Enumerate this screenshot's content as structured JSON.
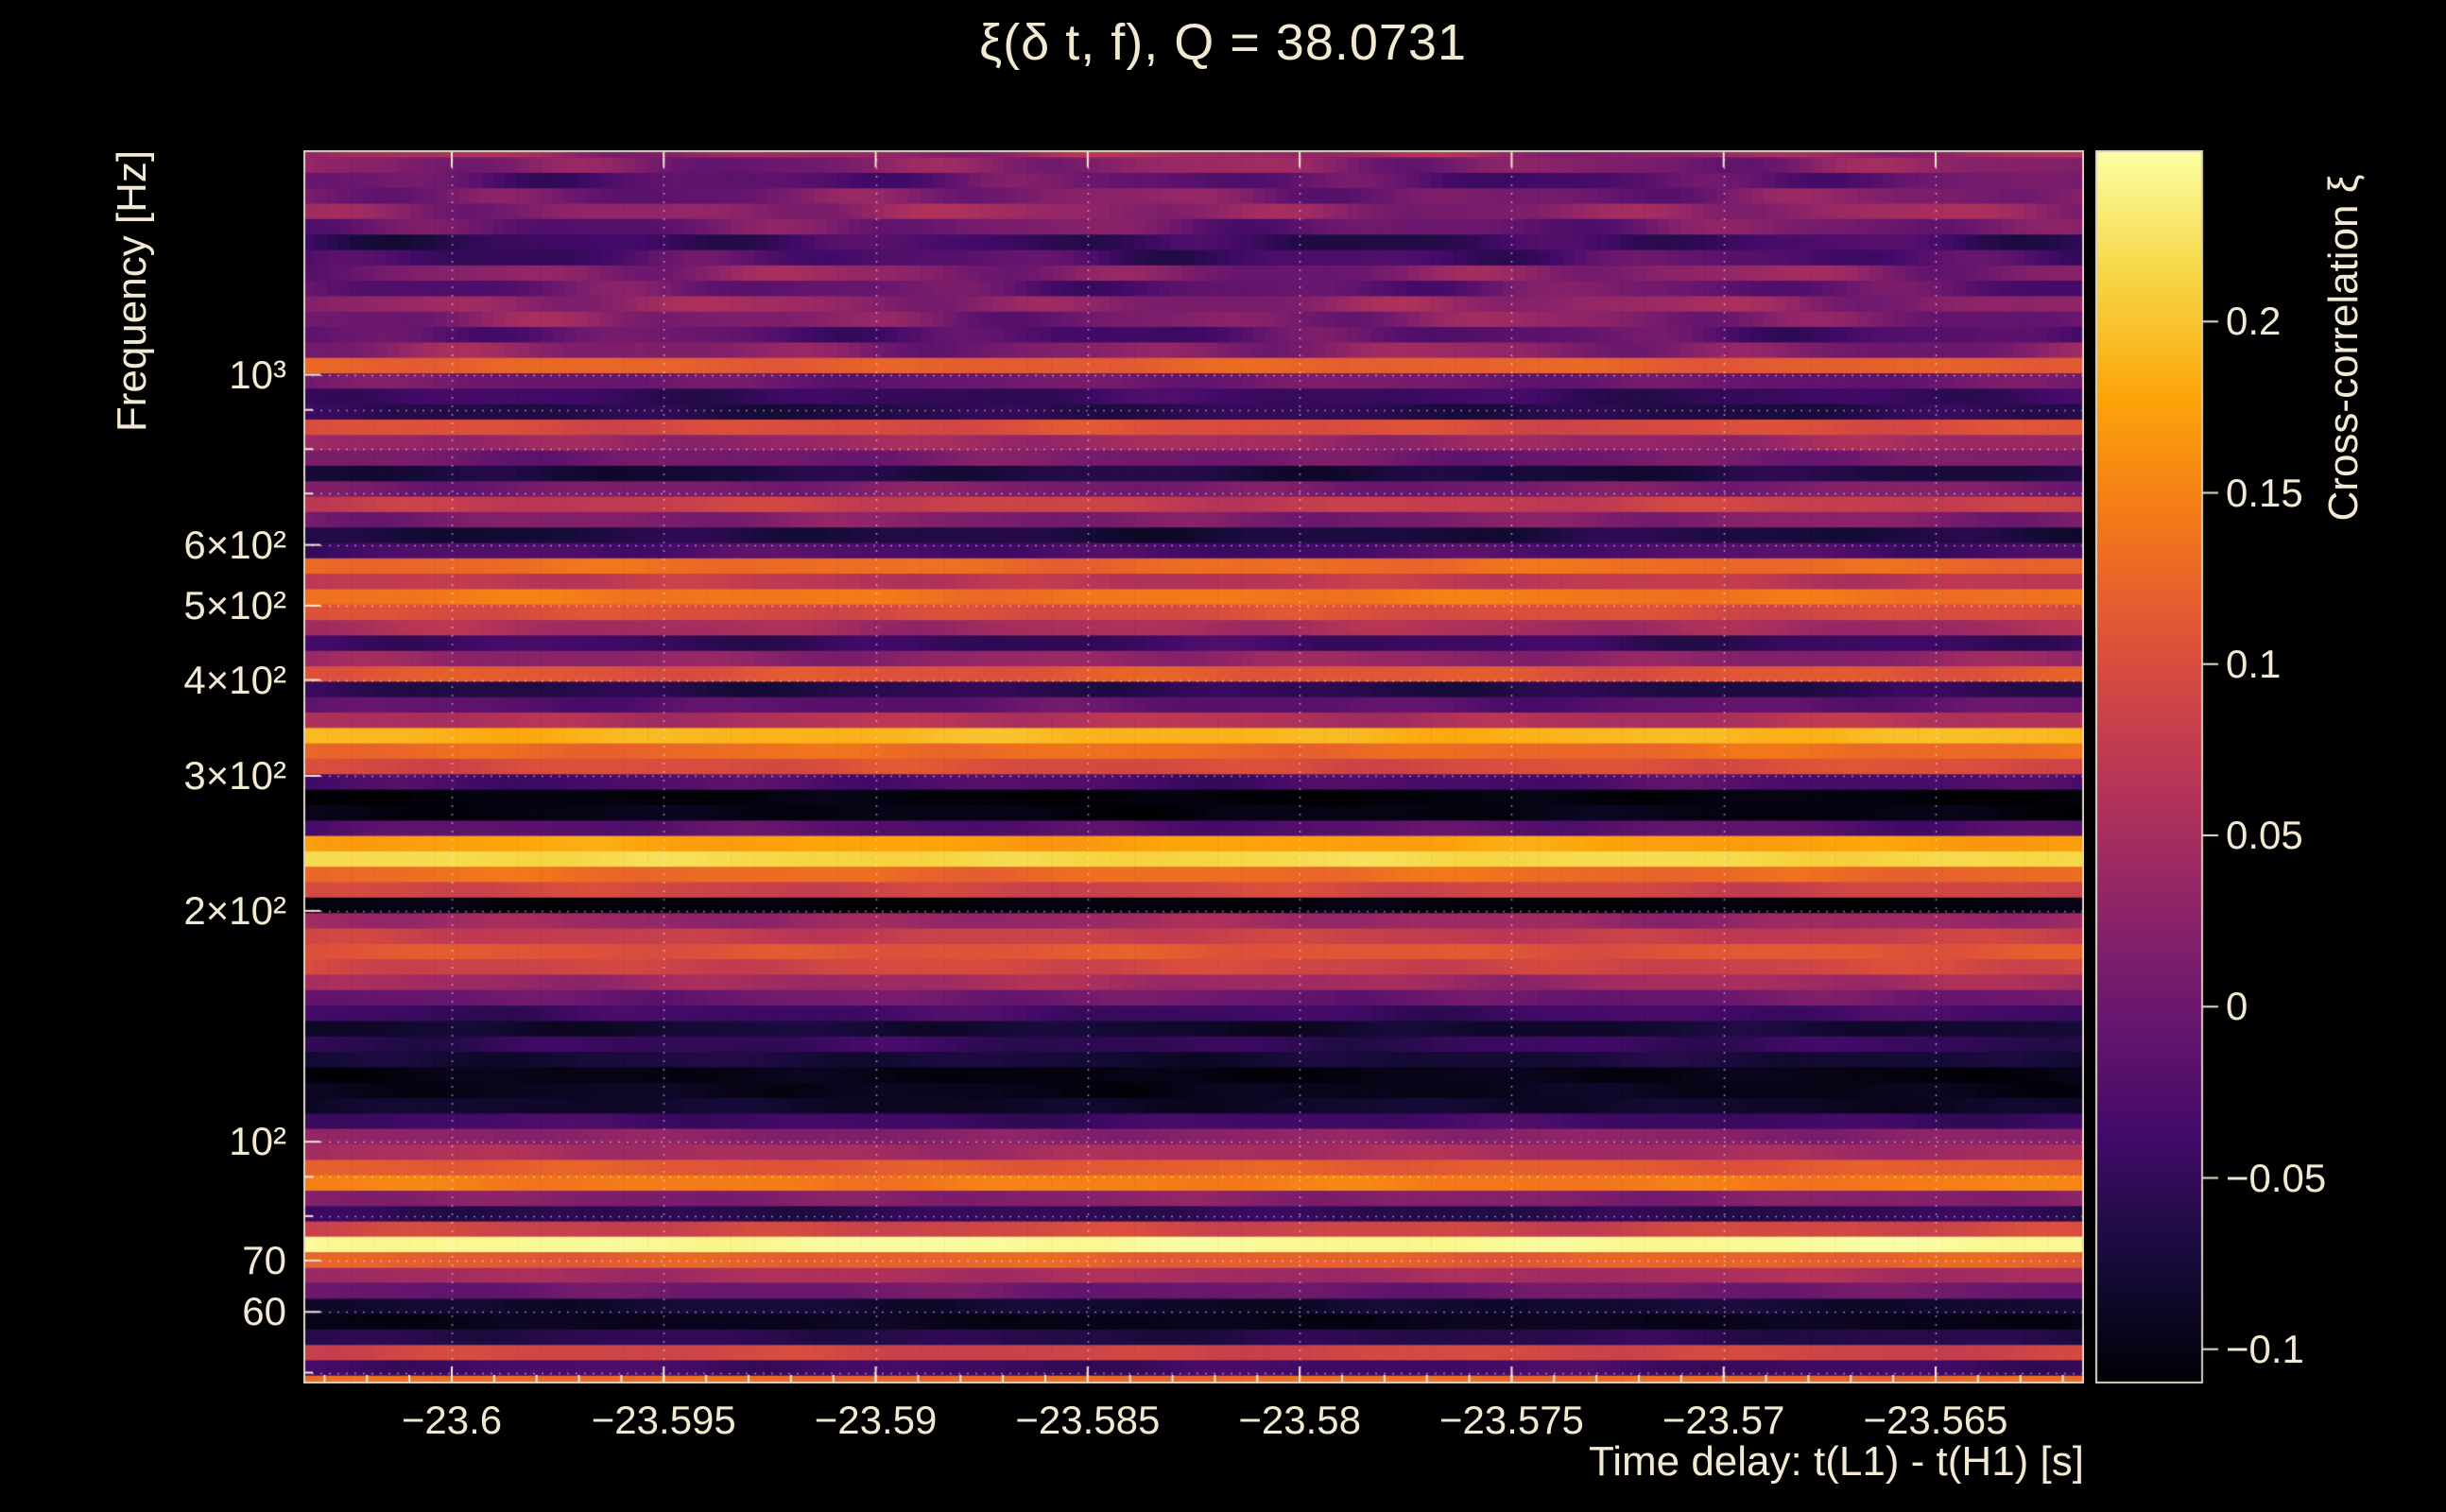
{
  "colors": {
    "background": "#000000",
    "text": "#f2e9d2",
    "grid": "#ffffff",
    "frame": "#d8cfbc"
  },
  "chart_data": {
    "type": "heatmap",
    "title": "ξ(δ t, f), Q = 38.0731",
    "xlabel": "Time delay: t(L1) - t(H1) [s]",
    "ylabel": "Frequency [Hz]",
    "zlabel": "Cross-correlation ξ",
    "colormap": "inferno",
    "x_range": [
      -23.6035,
      -23.5615
    ],
    "y_range": [
      48.4,
      1962
    ],
    "y_scale": "log",
    "z_range": [
      -0.11,
      0.25
    ],
    "x_ticks": [
      {
        "v": -23.6,
        "label": "−23.6"
      },
      {
        "v": -23.595,
        "label": "−23.595"
      },
      {
        "v": -23.59,
        "label": "−23.59"
      },
      {
        "v": -23.585,
        "label": "−23.585"
      },
      {
        "v": -23.58,
        "label": "−23.58"
      },
      {
        "v": -23.575,
        "label": "−23.575"
      },
      {
        "v": -23.57,
        "label": "−23.57"
      },
      {
        "v": -23.565,
        "label": "−23.565"
      }
    ],
    "x_minor_step": 0.001,
    "y_ticks": [
      {
        "v": 1000,
        "label": "10³"
      },
      {
        "v": 600,
        "label": "6×10²"
      },
      {
        "v": 500,
        "label": "5×10²"
      },
      {
        "v": 400,
        "label": "4×10²"
      },
      {
        "v": 300,
        "label": "3×10²"
      },
      {
        "v": 200,
        "label": "2×10²"
      },
      {
        "v": 100,
        "label": "10²"
      },
      {
        "v": 70,
        "label": "70"
      },
      {
        "v": 60,
        "label": "60"
      }
    ],
    "y_minor_ticks": [
      50,
      80,
      90,
      700,
      800,
      900
    ],
    "y_grid": [
      50,
      60,
      70,
      80,
      90,
      100,
      200,
      300,
      400,
      500,
      600,
      700,
      800,
      900,
      1000
    ],
    "z_ticks": [
      {
        "v": 0.2,
        "label": "0.2"
      },
      {
        "v": 0.15,
        "label": "0.15"
      },
      {
        "v": 0.1,
        "label": "0.1"
      },
      {
        "v": 0.05,
        "label": "0.05"
      },
      {
        "v": 0,
        "label": "0"
      },
      {
        "v": -0.05,
        "label": "−0.05"
      },
      {
        "v": -0.1,
        "label": "−0.1"
      }
    ],
    "columns": 150,
    "rows": [
      {
        "f": 48.5,
        "xi": 0.13,
        "m": 0.01
      },
      {
        "f": 50.8,
        "xi": -0.04,
        "m": 0.015
      },
      {
        "f": 53.2,
        "xi": 0.09,
        "m": 0.012
      },
      {
        "f": 55.7,
        "xi": -0.06,
        "m": 0.015
      },
      {
        "f": 58.4,
        "xi": -0.095,
        "m": 0.01
      },
      {
        "f": 61.1,
        "xi": -0.08,
        "m": 0.012
      },
      {
        "f": 64.0,
        "xi": 0.0,
        "m": 0.015
      },
      {
        "f": 67.1,
        "xi": 0.05,
        "m": 0.015
      },
      {
        "f": 70.2,
        "xi": 0.12,
        "m": 0.012
      },
      {
        "f": 73.6,
        "xi": 0.245,
        "m": 0.006
      },
      {
        "f": 77.1,
        "xi": 0.09,
        "m": 0.015
      },
      {
        "f": 80.7,
        "xi": -0.055,
        "m": 0.015
      },
      {
        "f": 84.5,
        "xi": 0.02,
        "m": 0.015
      },
      {
        "f": 88.5,
        "xi": 0.145,
        "m": 0.012
      },
      {
        "f": 92.7,
        "xi": 0.115,
        "m": 0.012
      },
      {
        "f": 97.1,
        "xi": 0.05,
        "m": 0.015
      },
      {
        "f": 101.7,
        "xi": 0.025,
        "m": 0.015
      },
      {
        "f": 106.6,
        "xi": -0.04,
        "m": 0.015
      },
      {
        "f": 111.6,
        "xi": -0.085,
        "m": 0.012
      },
      {
        "f": 116.9,
        "xi": -0.095,
        "m": 0.012
      },
      {
        "f": 122.4,
        "xi": -0.1,
        "m": 0.01
      },
      {
        "f": 128.2,
        "xi": -0.075,
        "m": 0.015
      },
      {
        "f": 134.3,
        "xi": -0.05,
        "m": 0.018
      },
      {
        "f": 140.7,
        "xi": -0.08,
        "m": 0.015
      },
      {
        "f": 147.3,
        "xi": -0.04,
        "m": 0.018
      },
      {
        "f": 154.3,
        "xi": 0.0,
        "m": 0.018
      },
      {
        "f": 161.6,
        "xi": 0.045,
        "m": 0.018
      },
      {
        "f": 169.3,
        "xi": 0.09,
        "m": 0.015
      },
      {
        "f": 177.3,
        "xi": 0.11,
        "m": 0.012
      },
      {
        "f": 185.7,
        "xi": 0.08,
        "m": 0.015
      },
      {
        "f": 194.5,
        "xi": 0.04,
        "m": 0.018
      },
      {
        "f": 203.7,
        "xi": -0.105,
        "m": 0.008
      },
      {
        "f": 213.4,
        "xi": 0.09,
        "m": 0.015
      },
      {
        "f": 223.5,
        "xi": 0.13,
        "m": 0.012
      },
      {
        "f": 234.1,
        "xi": 0.215,
        "m": 0.008
      },
      {
        "f": 245.2,
        "xi": 0.175,
        "m": 0.01
      },
      {
        "f": 256.8,
        "xi": -0.02,
        "m": 0.02
      },
      {
        "f": 268.9,
        "xi": -0.1,
        "m": 0.01
      },
      {
        "f": 281.7,
        "xi": -0.105,
        "m": 0.01
      },
      {
        "f": 295.0,
        "xi": -0.03,
        "m": 0.02
      },
      {
        "f": 309.0,
        "xi": 0.1,
        "m": 0.015
      },
      {
        "f": 323.7,
        "xi": 0.13,
        "m": 0.012
      },
      {
        "f": 339.0,
        "xi": 0.19,
        "m": 0.01
      },
      {
        "f": 355.1,
        "xi": 0.06,
        "m": 0.018
      },
      {
        "f": 371.9,
        "xi": -0.015,
        "m": 0.02
      },
      {
        "f": 389.5,
        "xi": -0.06,
        "m": 0.018
      },
      {
        "f": 408.0,
        "xi": 0.11,
        "m": 0.015
      },
      {
        "f": 427.3,
        "xi": 0.03,
        "m": 0.02
      },
      {
        "f": 447.6,
        "xi": -0.045,
        "m": 0.02
      },
      {
        "f": 468.8,
        "xi": 0.05,
        "m": 0.02
      },
      {
        "f": 491.0,
        "xi": 0.1,
        "m": 0.015
      },
      {
        "f": 514.3,
        "xi": 0.14,
        "m": 0.012
      },
      {
        "f": 538.6,
        "xi": 0.07,
        "m": 0.018
      },
      {
        "f": 564.2,
        "xi": 0.13,
        "m": 0.012
      },
      {
        "f": 590.9,
        "xi": -0.03,
        "m": 0.02
      },
      {
        "f": 618.9,
        "xi": -0.07,
        "m": 0.018
      },
      {
        "f": 648.2,
        "xi": 0.015,
        "m": 0.02
      },
      {
        "f": 678.9,
        "xi": 0.08,
        "m": 0.018
      },
      {
        "f": 711.1,
        "xi": 0.01,
        "m": 0.02
      },
      {
        "f": 744.8,
        "xi": -0.07,
        "m": 0.018
      },
      {
        "f": 780.1,
        "xi": 0.005,
        "m": 0.02
      },
      {
        "f": 817.0,
        "xi": 0.04,
        "m": 0.02
      },
      {
        "f": 855.7,
        "xi": 0.1,
        "m": 0.015
      },
      {
        "f": 896.3,
        "xi": -0.06,
        "m": 0.018
      },
      {
        "f": 938.7,
        "xi": -0.045,
        "m": 0.02
      },
      {
        "f": 983.2,
        "xi": 0.0,
        "m": 0.02
      },
      {
        "f": 1029.8,
        "xi": 0.12,
        "m": 0.012
      },
      {
        "f": 1078.6,
        "xi": 0.02,
        "m": 0.035
      },
      {
        "f": 1129.7,
        "xi": -0.02,
        "m": 0.04
      },
      {
        "f": 1183.2,
        "xi": 0.015,
        "m": 0.04
      },
      {
        "f": 1239.2,
        "xi": 0.03,
        "m": 0.035
      },
      {
        "f": 1297.9,
        "xi": -0.01,
        "m": 0.04
      },
      {
        "f": 1359.4,
        "xi": 0.02,
        "m": 0.04
      },
      {
        "f": 1423.8,
        "xi": -0.03,
        "m": 0.04
      },
      {
        "f": 1491.2,
        "xi": -0.045,
        "m": 0.035
      },
      {
        "f": 1561.9,
        "xi": 0.0,
        "m": 0.04
      },
      {
        "f": 1635.9,
        "xi": 0.03,
        "m": 0.035
      },
      {
        "f": 1713.4,
        "xi": 0.01,
        "m": 0.04
      },
      {
        "f": 1794.5,
        "xi": -0.015,
        "m": 0.04
      },
      {
        "f": 1879.5,
        "xi": 0.02,
        "m": 0.04
      },
      {
        "f": 1968.5,
        "xi": 0.04,
        "m": 0.035
      }
    ]
  }
}
